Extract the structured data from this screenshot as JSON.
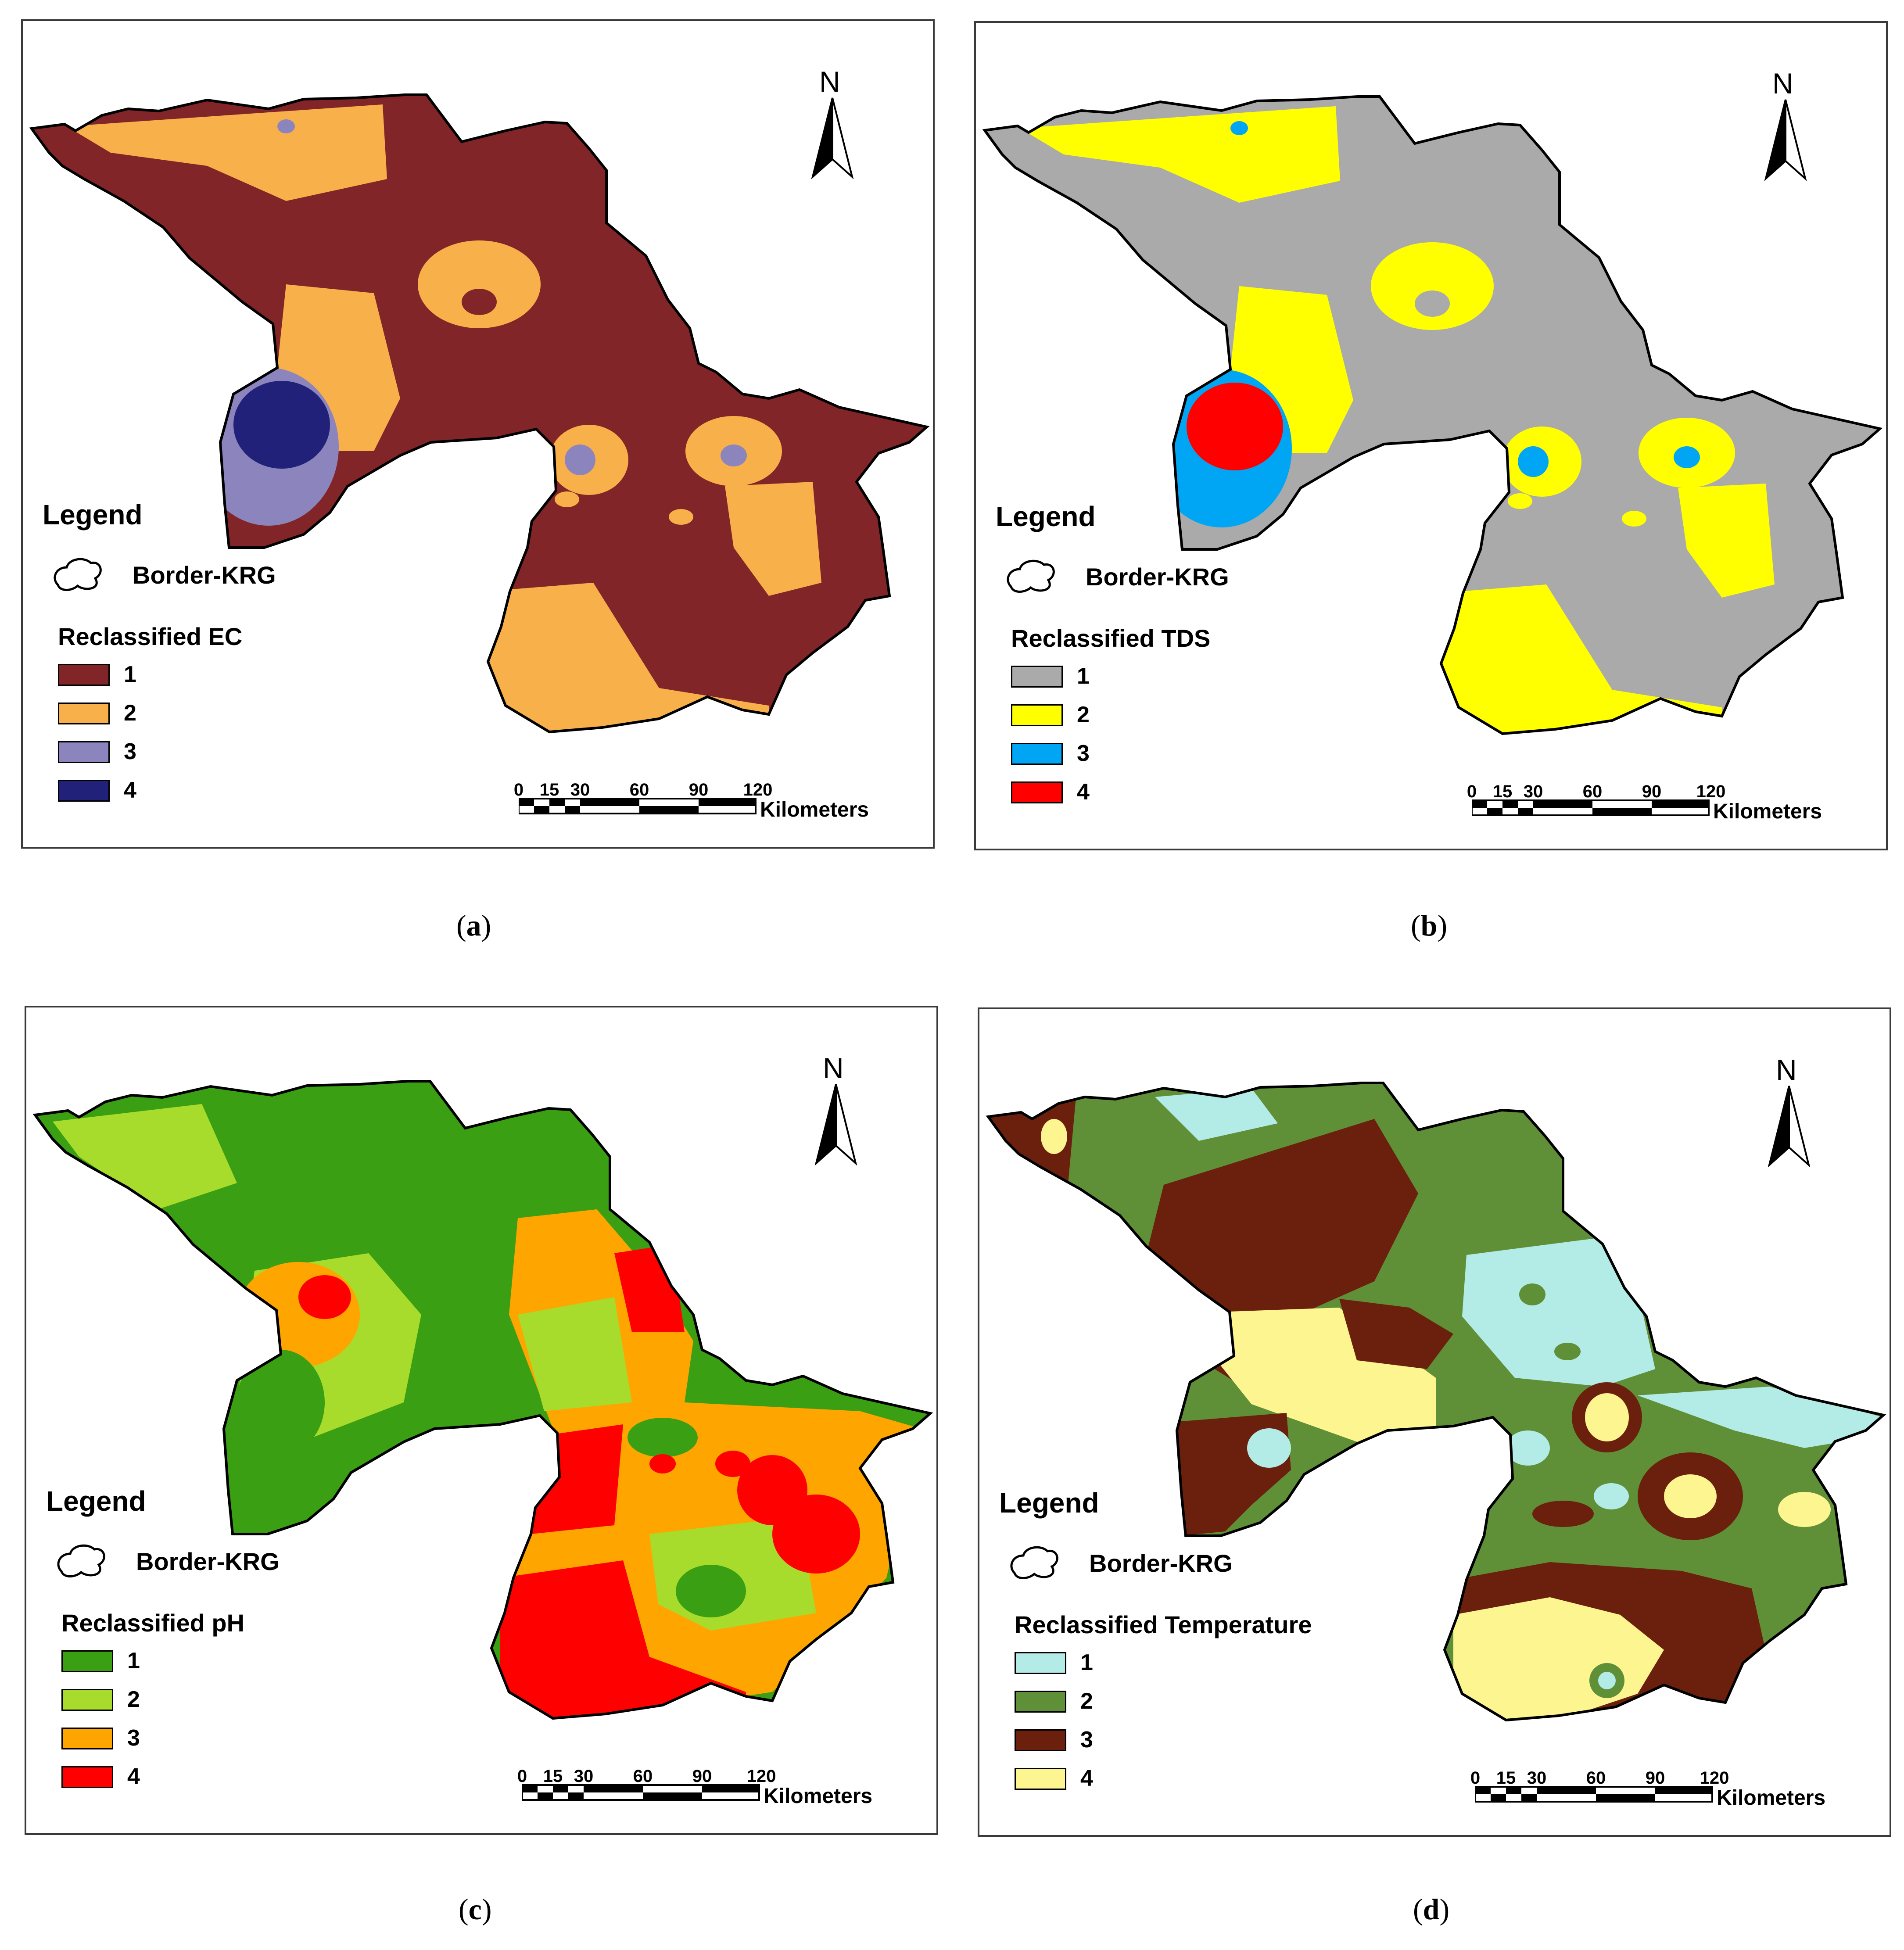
{
  "panels": [
    {
      "caption_letter": "a",
      "legend_title": "Legend",
      "border_label": "Border-KRG",
      "class_title": "Reclassified EC",
      "classes": [
        {
          "label": "1",
          "color": "#812528"
        },
        {
          "label": "2",
          "color": "#f8b14a"
        },
        {
          "label": "3",
          "color": "#8c84bd"
        },
        {
          "label": "4",
          "color": "#22217a"
        }
      ]
    },
    {
      "caption_letter": "b",
      "legend_title": "Legend",
      "border_label": "Border-KRG",
      "class_title": "Reclassified TDS",
      "classes": [
        {
          "label": "1",
          "color": "#aaaaaa"
        },
        {
          "label": "2",
          "color": "#ffff00"
        },
        {
          "label": "3",
          "color": "#00a6f4"
        },
        {
          "label": "4",
          "color": "#ff0000"
        }
      ]
    },
    {
      "caption_letter": "c",
      "legend_title": "Legend",
      "border_label": "Border-KRG",
      "class_title": "Reclassified pH",
      "classes": [
        {
          "label": "1",
          "color": "#3a9f12"
        },
        {
          "label": "2",
          "color": "#a8dc2c"
        },
        {
          "label": "3",
          "color": "#ffa500"
        },
        {
          "label": "4",
          "color": "#ff0000"
        }
      ]
    },
    {
      "caption_letter": "d",
      "legend_title": "Legend",
      "border_label": "Border-KRG",
      "class_title": "Reclassified Temperature",
      "classes": [
        {
          "label": "1",
          "color": "#b3ebe6"
        },
        {
          "label": "2",
          "color": "#5f8f37"
        },
        {
          "label": "3",
          "color": "#6a200c"
        },
        {
          "label": "4",
          "color": "#fdf590"
        }
      ]
    }
  ],
  "north_label": "N",
  "scale": {
    "ticks": [
      "0",
      "15",
      "30",
      "60",
      "90",
      "120"
    ],
    "unit": "Kilometers"
  },
  "border_color": "#000000"
}
